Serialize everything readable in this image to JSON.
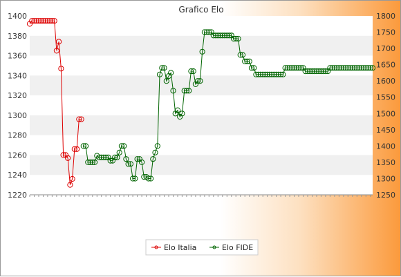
{
  "colors": {
    "italia": "#dd0000",
    "fide": "#006400",
    "band": "#f0f0f0",
    "plot_bg": "#ffffff"
  },
  "chart_data": {
    "type": "line",
    "title": "Grafico Elo",
    "left_axis": {
      "ylim": [
        1220,
        1400
      ],
      "ticks": [
        1220,
        1240,
        1260,
        1280,
        1300,
        1320,
        1340,
        1360,
        1380,
        1400
      ]
    },
    "right_axis": {
      "ylim": [
        1250,
        1800
      ],
      "ticks": [
        1250,
        1300,
        1350,
        1400,
        1450,
        1500,
        1550,
        1600,
        1650,
        1700,
        1750,
        1800
      ]
    },
    "grid": "horizontal alternating bands",
    "legend_position": "bottom-center",
    "series": [
      {
        "name": "Elo Italia",
        "axis": "left",
        "start_index": 0,
        "values": [
          1392,
          1395,
          1395,
          1395,
          1395,
          1395,
          1395,
          1395,
          1395,
          1395,
          1395,
          1395,
          1365,
          1374,
          1347,
          1260,
          1260,
          1257,
          1230,
          1236,
          1266,
          1266,
          1296,
          1296
        ]
      },
      {
        "name": "Elo FIDE",
        "axis": "right",
        "start_index": 24,
        "values": [
          1400,
          1400,
          1350,
          1350,
          1350,
          1350,
          1370,
          1365,
          1365,
          1365,
          1365,
          1365,
          1355,
          1355,
          1365,
          1365,
          1380,
          1400,
          1400,
          1360,
          1345,
          1345,
          1300,
          1300,
          1360,
          1360,
          1350,
          1305,
          1305,
          1300,
          1300,
          1360,
          1380,
          1400,
          1620,
          1640,
          1640,
          1600,
          1615,
          1625,
          1570,
          1500,
          1510,
          1490,
          1500,
          1570,
          1570,
          1570,
          1630,
          1630,
          1590,
          1600,
          1600,
          1690,
          1750,
          1750,
          1750,
          1750,
          1740,
          1740,
          1740,
          1740,
          1740,
          1740,
          1740,
          1740,
          1740,
          1730,
          1730,
          1730,
          1680,
          1680,
          1660,
          1660,
          1660,
          1640,
          1640,
          1620,
          1620,
          1620,
          1620,
          1620,
          1620,
          1620,
          1620,
          1620,
          1620,
          1620,
          1620,
          1620,
          1640,
          1640,
          1640,
          1640,
          1640,
          1640,
          1640,
          1640,
          1640,
          1630,
          1630,
          1630,
          1630,
          1630,
          1630,
          1630,
          1630,
          1630,
          1630,
          1630,
          1640,
          1640,
          1640,
          1640,
          1640,
          1640,
          1640,
          1640,
          1640,
          1640,
          1640,
          1640,
          1640,
          1640,
          1640,
          1640,
          1640,
          1640,
          1640,
          1640
        ]
      }
    ],
    "legend": [
      "Elo Italia",
      "Elo FIDE"
    ]
  }
}
